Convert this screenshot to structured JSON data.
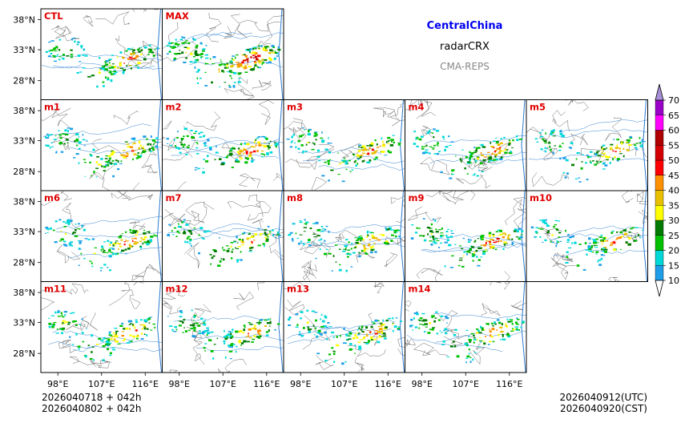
{
  "chart_data": {
    "type": "heatmap",
    "title": "CentralChina",
    "subtitle": "radarCRX",
    "source": "CMA-REPS",
    "x_ticks": [
      "98°E",
      "107°E",
      "116°E"
    ],
    "y_ticks": [
      "38°N",
      "33°N",
      "28°N"
    ],
    "panels": [
      {
        "label": "CTL",
        "row": 0,
        "col": 0,
        "intensity": 0.45,
        "seed": 11
      },
      {
        "label": "MAX",
        "row": 0,
        "col": 1,
        "intensity": 0.95,
        "seed": 23
      },
      {
        "label": "m1",
        "row": 1,
        "col": 0,
        "intensity": 0.5,
        "seed": 31
      },
      {
        "label": "m2",
        "row": 1,
        "col": 1,
        "intensity": 0.45,
        "seed": 37
      },
      {
        "label": "m3",
        "row": 1,
        "col": 2,
        "intensity": 0.45,
        "seed": 41
      },
      {
        "label": "m4",
        "row": 1,
        "col": 3,
        "intensity": 0.5,
        "seed": 43
      },
      {
        "label": "m5",
        "row": 1,
        "col": 4,
        "intensity": 0.4,
        "seed": 47
      },
      {
        "label": "m6",
        "row": 2,
        "col": 0,
        "intensity": 0.5,
        "seed": 53
      },
      {
        "label": "m7",
        "row": 2,
        "col": 1,
        "intensity": 0.35,
        "seed": 59
      },
      {
        "label": "m8",
        "row": 2,
        "col": 2,
        "intensity": 0.45,
        "seed": 61
      },
      {
        "label": "m9",
        "row": 2,
        "col": 3,
        "intensity": 0.55,
        "seed": 67
      },
      {
        "label": "m10",
        "row": 2,
        "col": 4,
        "intensity": 0.45,
        "seed": 71
      },
      {
        "label": "m11",
        "row": 3,
        "col": 0,
        "intensity": 0.5,
        "seed": 73
      },
      {
        "label": "m12",
        "row": 3,
        "col": 1,
        "intensity": 0.45,
        "seed": 79
      },
      {
        "label": "m13",
        "row": 3,
        "col": 2,
        "intensity": 0.5,
        "seed": 83
      },
      {
        "label": "m14",
        "row": 3,
        "col": 3,
        "intensity": 0.5,
        "seed": 89
      }
    ],
    "colorbar": {
      "levels": [
        "10",
        "15",
        "20",
        "25",
        "30",
        "35",
        "40",
        "45",
        "50",
        "55",
        "60",
        "65",
        "70"
      ],
      "colors": [
        "#1e9ee8",
        "#00d8d8",
        "#00c000",
        "#007a00",
        "#ffff00",
        "#e8c000",
        "#ff9000",
        "#ff0000",
        "#d40000",
        "#b00000",
        "#ff00ff",
        "#9a00c8",
        "#a890d8"
      ],
      "extend": "both"
    },
    "footer": {
      "init_utc": "2026040718  +  042h",
      "init_cst": "2026040802  +  042h",
      "valid_utc": "2026040912(UTC)",
      "valid_cst": "2026040920(CST)"
    }
  }
}
